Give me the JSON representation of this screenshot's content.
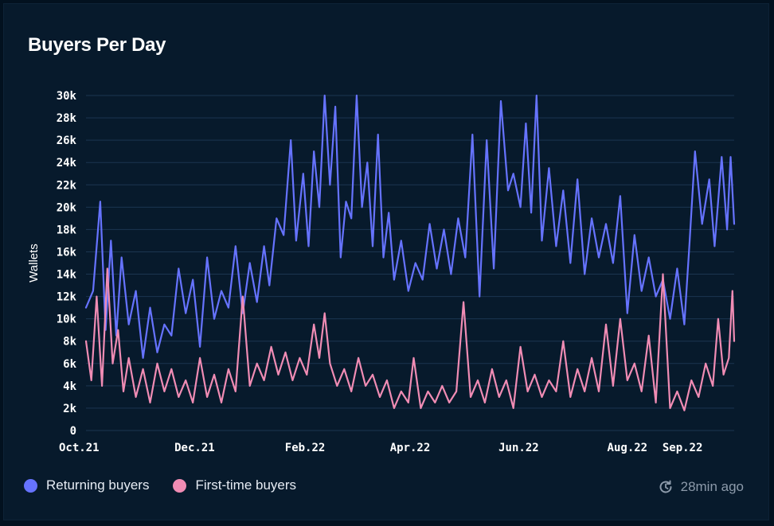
{
  "title": "Buyers Per Day",
  "legend": [
    {
      "label": "Returning buyers",
      "color": "#6673ff"
    },
    {
      "label": "First-time buyers",
      "color": "#f08cb4"
    }
  ],
  "updated": {
    "text": "28min ago",
    "icon": "refresh-clock-icon"
  },
  "chart_data": {
    "type": "line",
    "title": "Buyers Per Day",
    "ylabel": "Wallets",
    "xlabel": "",
    "x_range": [
      "2021-10-01",
      "2022-09-30"
    ],
    "xtick_labels": [
      "Oct.21",
      "Dec.21",
      "Feb.22",
      "Apr.22",
      "Jun.22",
      "Aug.22",
      "Sep.22"
    ],
    "xtick_dates": [
      "2021-10-01",
      "2021-12-01",
      "2022-02-01",
      "2022-04-01",
      "2022-06-01",
      "2022-08-01",
      "2022-09-01"
    ],
    "ylim": [
      0,
      30000
    ],
    "ytick_labels": [
      "0",
      "2k",
      "4k",
      "6k",
      "8k",
      "10k",
      "12k",
      "14k",
      "16k",
      "18k",
      "20k",
      "22k",
      "24k",
      "26k",
      "28k",
      "30k"
    ],
    "grid": true,
    "legend_position": "bottom-left",
    "series": [
      {
        "name": "Returning buyers",
        "color": "#6673ff",
        "points": [
          [
            "2021-10-01",
            11000
          ],
          [
            "2021-10-05",
            12500
          ],
          [
            "2021-10-09",
            20500
          ],
          [
            "2021-10-12",
            9000
          ],
          [
            "2021-10-15",
            17000
          ],
          [
            "2021-10-18",
            8500
          ],
          [
            "2021-10-21",
            15500
          ],
          [
            "2021-10-25",
            9500
          ],
          [
            "2021-10-29",
            12500
          ],
          [
            "2021-11-02",
            6500
          ],
          [
            "2021-11-06",
            11000
          ],
          [
            "2021-11-10",
            7000
          ],
          [
            "2021-11-14",
            9500
          ],
          [
            "2021-11-18",
            8500
          ],
          [
            "2021-11-22",
            14500
          ],
          [
            "2021-11-26",
            10500
          ],
          [
            "2021-11-30",
            13500
          ],
          [
            "2021-12-04",
            7500
          ],
          [
            "2021-12-08",
            15500
          ],
          [
            "2021-12-12",
            10000
          ],
          [
            "2021-12-16",
            12500
          ],
          [
            "2021-12-20",
            11000
          ],
          [
            "2021-12-24",
            16500
          ],
          [
            "2021-12-28",
            10500
          ],
          [
            "2022-01-01",
            15000
          ],
          [
            "2022-01-05",
            11500
          ],
          [
            "2022-01-09",
            16500
          ],
          [
            "2022-01-12",
            13000
          ],
          [
            "2022-01-16",
            19000
          ],
          [
            "2022-01-20",
            17500
          ],
          [
            "2022-01-24",
            26000
          ],
          [
            "2022-01-27",
            17000
          ],
          [
            "2022-01-31",
            23000
          ],
          [
            "2022-02-03",
            16500
          ],
          [
            "2022-02-06",
            25000
          ],
          [
            "2022-02-09",
            20000
          ],
          [
            "2022-02-12",
            30000
          ],
          [
            "2022-02-15",
            22000
          ],
          [
            "2022-02-18",
            29000
          ],
          [
            "2022-02-21",
            15500
          ],
          [
            "2022-02-24",
            20500
          ],
          [
            "2022-02-27",
            19000
          ],
          [
            "2022-03-02",
            30000
          ],
          [
            "2022-03-05",
            20000
          ],
          [
            "2022-03-08",
            24000
          ],
          [
            "2022-03-11",
            16500
          ],
          [
            "2022-03-14",
            26500
          ],
          [
            "2022-03-17",
            15500
          ],
          [
            "2022-03-20",
            19500
          ],
          [
            "2022-03-23",
            13500
          ],
          [
            "2022-03-27",
            17000
          ],
          [
            "2022-03-31",
            12500
          ],
          [
            "2022-04-04",
            15000
          ],
          [
            "2022-04-08",
            13500
          ],
          [
            "2022-04-12",
            18500
          ],
          [
            "2022-04-16",
            14500
          ],
          [
            "2022-04-20",
            18000
          ],
          [
            "2022-04-24",
            14000
          ],
          [
            "2022-04-28",
            19000
          ],
          [
            "2022-05-02",
            15500
          ],
          [
            "2022-05-06",
            26500
          ],
          [
            "2022-05-10",
            12000
          ],
          [
            "2022-05-14",
            26000
          ],
          [
            "2022-05-18",
            14500
          ],
          [
            "2022-05-22",
            29500
          ],
          [
            "2022-05-26",
            21500
          ],
          [
            "2022-05-29",
            23000
          ],
          [
            "2022-06-02",
            20000
          ],
          [
            "2022-06-05",
            27500
          ],
          [
            "2022-06-08",
            19500
          ],
          [
            "2022-06-11",
            30000
          ],
          [
            "2022-06-14",
            17000
          ],
          [
            "2022-06-18",
            23500
          ],
          [
            "2022-06-22",
            16500
          ],
          [
            "2022-06-26",
            21500
          ],
          [
            "2022-06-30",
            15000
          ],
          [
            "2022-07-04",
            22500
          ],
          [
            "2022-07-08",
            14000
          ],
          [
            "2022-07-12",
            19000
          ],
          [
            "2022-07-16",
            15500
          ],
          [
            "2022-07-20",
            18500
          ],
          [
            "2022-07-24",
            15000
          ],
          [
            "2022-07-28",
            21000
          ],
          [
            "2022-08-01",
            10500
          ],
          [
            "2022-08-05",
            17500
          ],
          [
            "2022-08-09",
            12500
          ],
          [
            "2022-08-13",
            15500
          ],
          [
            "2022-08-17",
            12000
          ],
          [
            "2022-08-21",
            13500
          ],
          [
            "2022-08-25",
            10000
          ],
          [
            "2022-08-29",
            14500
          ],
          [
            "2022-09-02",
            9500
          ],
          [
            "2022-09-05",
            17000
          ],
          [
            "2022-09-08",
            25000
          ],
          [
            "2022-09-12",
            18500
          ],
          [
            "2022-09-16",
            22500
          ],
          [
            "2022-09-19",
            16500
          ],
          [
            "2022-09-23",
            24500
          ],
          [
            "2022-09-26",
            18000
          ],
          [
            "2022-09-28",
            24500
          ],
          [
            "2022-09-30",
            18500
          ]
        ]
      },
      {
        "name": "First-time buyers",
        "color": "#f08cb4",
        "points": [
          [
            "2021-10-01",
            8000
          ],
          [
            "2021-10-04",
            4500
          ],
          [
            "2021-10-07",
            12000
          ],
          [
            "2021-10-10",
            4000
          ],
          [
            "2021-10-13",
            14500
          ],
          [
            "2021-10-16",
            6000
          ],
          [
            "2021-10-19",
            9000
          ],
          [
            "2021-10-22",
            3500
          ],
          [
            "2021-10-25",
            6500
          ],
          [
            "2021-10-29",
            3000
          ],
          [
            "2021-11-02",
            5500
          ],
          [
            "2021-11-06",
            2500
          ],
          [
            "2021-11-10",
            6000
          ],
          [
            "2021-11-14",
            3500
          ],
          [
            "2021-11-18",
            5500
          ],
          [
            "2021-11-22",
            3000
          ],
          [
            "2021-11-26",
            4500
          ],
          [
            "2021-11-30",
            2500
          ],
          [
            "2021-12-04",
            6500
          ],
          [
            "2021-12-08",
            3000
          ],
          [
            "2021-12-12",
            5000
          ],
          [
            "2021-12-16",
            2500
          ],
          [
            "2021-12-20",
            5500
          ],
          [
            "2021-12-24",
            3500
          ],
          [
            "2021-12-28",
            12000
          ],
          [
            "2022-01-01",
            4000
          ],
          [
            "2022-01-05",
            6000
          ],
          [
            "2022-01-09",
            4500
          ],
          [
            "2022-01-13",
            7500
          ],
          [
            "2022-01-17",
            5000
          ],
          [
            "2022-01-21",
            7000
          ],
          [
            "2022-01-25",
            4500
          ],
          [
            "2022-01-29",
            6500
          ],
          [
            "2022-02-02",
            5000
          ],
          [
            "2022-02-06",
            9500
          ],
          [
            "2022-02-09",
            6500
          ],
          [
            "2022-02-12",
            10500
          ],
          [
            "2022-02-15",
            6000
          ],
          [
            "2022-02-19",
            4000
          ],
          [
            "2022-02-23",
            5500
          ],
          [
            "2022-02-27",
            3500
          ],
          [
            "2022-03-03",
            6500
          ],
          [
            "2022-03-07",
            4000
          ],
          [
            "2022-03-11",
            5000
          ],
          [
            "2022-03-15",
            3000
          ],
          [
            "2022-03-19",
            4500
          ],
          [
            "2022-03-23",
            2000
          ],
          [
            "2022-03-27",
            3500
          ],
          [
            "2022-03-31",
            2500
          ],
          [
            "2022-04-03",
            6500
          ],
          [
            "2022-04-07",
            2000
          ],
          [
            "2022-04-11",
            3500
          ],
          [
            "2022-04-15",
            2500
          ],
          [
            "2022-04-19",
            4000
          ],
          [
            "2022-04-23",
            2500
          ],
          [
            "2022-04-27",
            3500
          ],
          [
            "2022-05-01",
            11500
          ],
          [
            "2022-05-05",
            3000
          ],
          [
            "2022-05-09",
            4500
          ],
          [
            "2022-05-13",
            2500
          ],
          [
            "2022-05-17",
            5500
          ],
          [
            "2022-05-21",
            3000
          ],
          [
            "2022-05-25",
            4500
          ],
          [
            "2022-05-29",
            2000
          ],
          [
            "2022-06-02",
            7500
          ],
          [
            "2022-06-06",
            3500
          ],
          [
            "2022-06-10",
            5000
          ],
          [
            "2022-06-14",
            3000
          ],
          [
            "2022-06-18",
            4500
          ],
          [
            "2022-06-22",
            3500
          ],
          [
            "2022-06-26",
            8000
          ],
          [
            "2022-06-30",
            3000
          ],
          [
            "2022-07-04",
            5500
          ],
          [
            "2022-07-08",
            3500
          ],
          [
            "2022-07-12",
            6500
          ],
          [
            "2022-07-16",
            3500
          ],
          [
            "2022-07-20",
            9500
          ],
          [
            "2022-07-24",
            4000
          ],
          [
            "2022-07-28",
            10000
          ],
          [
            "2022-08-01",
            4500
          ],
          [
            "2022-08-05",
            6000
          ],
          [
            "2022-08-09",
            3500
          ],
          [
            "2022-08-13",
            8500
          ],
          [
            "2022-08-17",
            2500
          ],
          [
            "2022-08-21",
            14000
          ],
          [
            "2022-08-25",
            2000
          ],
          [
            "2022-08-29",
            3500
          ],
          [
            "2022-09-02",
            1800
          ],
          [
            "2022-09-06",
            4500
          ],
          [
            "2022-09-10",
            3000
          ],
          [
            "2022-09-14",
            6000
          ],
          [
            "2022-09-18",
            4000
          ],
          [
            "2022-09-21",
            10000
          ],
          [
            "2022-09-24",
            5000
          ],
          [
            "2022-09-27",
            6500
          ],
          [
            "2022-09-29",
            12500
          ],
          [
            "2022-09-30",
            8000
          ]
        ]
      }
    ]
  }
}
